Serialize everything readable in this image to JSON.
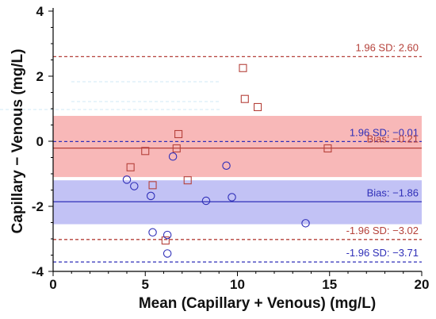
{
  "chart_data": {
    "type": "scatter",
    "title": "",
    "xlabel": "Mean (Capillary + Venous) (mg/L)",
    "ylabel": "Capillary − Venous (mg/L)",
    "xlim": [
      0,
      20
    ],
    "ylim": [
      -4,
      4
    ],
    "xticks": [
      "0",
      "5",
      "10",
      "15",
      "20"
    ],
    "yticks": [
      "4",
      "2",
      "0",
      "-2",
      "-4"
    ],
    "grid": false,
    "colors": {
      "red": "#b5413a",
      "blue": "#2f2fb8",
      "red_band": "#f8b8b8",
      "blue_band": "#c2c2f5"
    },
    "series": [
      {
        "marker": "square",
        "color": "#b5413a",
        "points": [
          [
            4.2,
            -0.8
          ],
          [
            5.0,
            -0.3
          ],
          [
            5.4,
            -1.35
          ],
          [
            6.1,
            -3.05
          ],
          [
            6.7,
            -0.22
          ],
          [
            6.8,
            0.22
          ],
          [
            7.3,
            -1.2
          ],
          [
            10.3,
            2.25
          ],
          [
            10.4,
            1.3
          ],
          [
            11.1,
            1.05
          ],
          [
            14.9,
            -0.22
          ]
        ]
      },
      {
        "marker": "circle",
        "color": "#2f2fb8",
        "points": [
          [
            4.0,
            -1.18
          ],
          [
            4.4,
            -1.38
          ],
          [
            5.3,
            -1.68
          ],
          [
            5.4,
            -2.8
          ],
          [
            6.2,
            -2.88
          ],
          [
            6.2,
            -3.45
          ],
          [
            6.5,
            -0.47
          ],
          [
            8.3,
            -1.83
          ],
          [
            9.4,
            -0.75
          ],
          [
            9.7,
            -1.72
          ],
          [
            13.7,
            -2.52
          ]
        ]
      }
    ],
    "bands": [
      {
        "color": "red",
        "from": -1.1,
        "to": 0.78
      },
      {
        "color": "blue",
        "from": -2.55,
        "to": -1.2
      }
    ],
    "ref_lines": [
      {
        "y": 2.6,
        "style": "dashed",
        "color": "red",
        "label": "1.96 SD: 2.60"
      },
      {
        "y": -0.01,
        "style": "dashed",
        "color": "blue",
        "label": "1.96 SD: −0.01"
      },
      {
        "y": -0.21,
        "style": "solid",
        "color": "red",
        "label": "Bias: −0.21"
      },
      {
        "y": -1.86,
        "style": "solid",
        "color": "blue",
        "label": "Bias: −1.86"
      },
      {
        "y": -3.02,
        "style": "dashed",
        "color": "red",
        "label": "-1.96 SD: −3.02"
      },
      {
        "y": -3.71,
        "style": "dashed",
        "color": "blue",
        "label": "-1.96 SD: −3.71"
      }
    ]
  }
}
